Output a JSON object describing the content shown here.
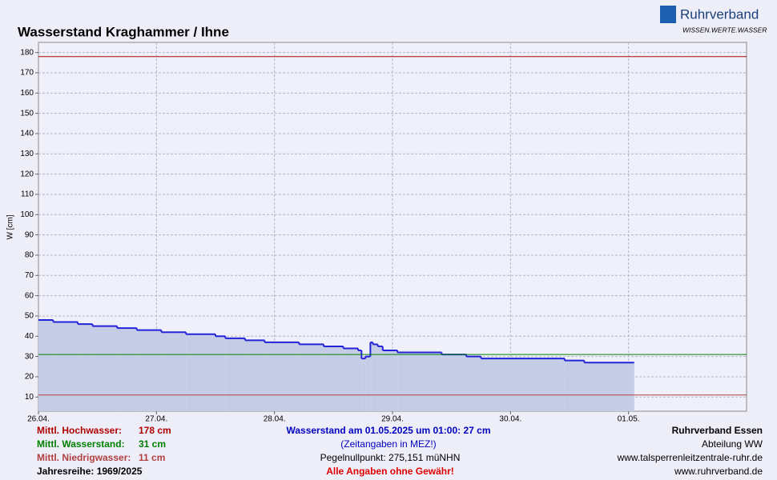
{
  "chart_data": {
    "type": "line",
    "title": "Wasserstand Kraghammer / Ihne",
    "y_label": "W [cm]",
    "logo": {
      "name": "Ruhrverband",
      "slogan": "WISSEN.WERTE.WASSER"
    },
    "step": true,
    "grid": true,
    "xlim": [
      0,
      144
    ],
    "xticks": [
      {
        "value": 0,
        "label": "26.04."
      },
      {
        "value": 24,
        "label": "27.04."
      },
      {
        "value": 48,
        "label": "28.04."
      },
      {
        "value": 72,
        "label": "29.04."
      },
      {
        "value": 96,
        "label": "30.04."
      },
      {
        "value": 120,
        "label": "01.05."
      }
    ],
    "ylim": [
      3,
      185
    ],
    "yticks": [
      10,
      20,
      30,
      40,
      50,
      60,
      70,
      80,
      90,
      100,
      110,
      120,
      130,
      140,
      150,
      160,
      170,
      180
    ],
    "series": [
      {
        "name": "Wasserstand",
        "color": "#2323d8",
        "fill": "#c5cde6",
        "x": [
          0,
          3,
          8,
          11,
          16,
          20,
          25,
          30,
          36,
          38,
          42,
          46,
          53,
          58,
          62,
          65,
          65.7,
          66.5,
          67.5,
          68,
          69,
          70,
          73,
          82,
          87,
          90,
          107,
          111,
          121
        ],
        "values": [
          48,
          47,
          46,
          45,
          44,
          43,
          42,
          41,
          40,
          39,
          38,
          37,
          36,
          35,
          34,
          33,
          29,
          30,
          37,
          36,
          35,
          33,
          32,
          31,
          30,
          29,
          28,
          27,
          27
        ]
      }
    ],
    "reference_lines": [
      {
        "name": "Mittl. Hochwasser:",
        "value": 178,
        "value_label": "178 cm",
        "color": "#b00000"
      },
      {
        "name": "Mittl. Wasserstand:",
        "value": 31,
        "value_label": "31 cm",
        "color": "#008000"
      },
      {
        "name": "Mittl. Niedrigwasser:",
        "value": 11,
        "value_label": "11 cm",
        "color": "#b04040"
      }
    ],
    "period": "Jahresreihe: 1969/2025",
    "current": "Wasserstand am 01.05.2025 um 01:00: 27 cm",
    "timezone_note": "(Zeitangaben in MEZ!)",
    "gauge_zero": "Pegelnullpunkt:   275,151 müNHN",
    "disclaimer": "Alle Angaben ohne Gewähr!",
    "publisher": [
      "Ruhrverband Essen",
      "Abteilung WW",
      "www.talsperrenleitzentrale-ruhr.de",
      "www.ruhrverband.de"
    ]
  }
}
